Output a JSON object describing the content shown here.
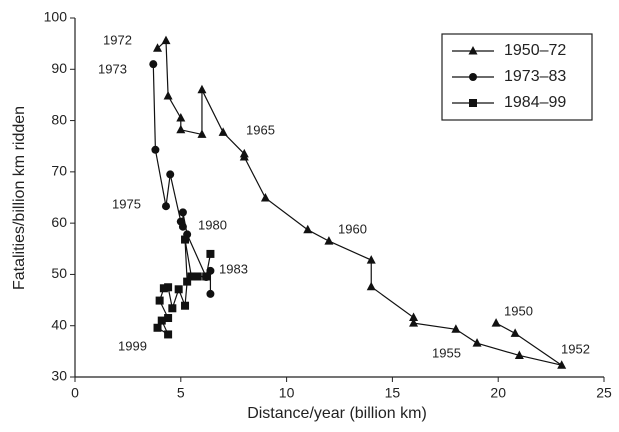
{
  "chart_data": {
    "type": "line",
    "x_label": "Distance/year (billion km)",
    "y_label": "Fatalities/billion km ridden",
    "xlim": [
      0,
      25
    ],
    "xticks": [
      0,
      5,
      10,
      15,
      20,
      25
    ],
    "ylim": [
      30,
      100
    ],
    "yticks": [
      30,
      40,
      50,
      60,
      70,
      80,
      90,
      100
    ],
    "grid": false,
    "legend": "upper right",
    "series": [
      {
        "name": "1950–72",
        "color": "#111111",
        "marker": "triangle",
        "x": [
          19.9,
          20.8,
          23.0,
          21.0,
          19.0,
          18.0,
          16.0,
          16.0,
          14.0,
          14.0,
          12.0,
          11.0,
          9.0,
          8.0,
          8.0,
          7.0,
          6.0,
          6.0,
          5.0,
          5.0,
          4.4,
          4.3,
          3.9
        ],
        "values": [
          40.5,
          38.5,
          32.3,
          34.2,
          36.6,
          39.3,
          40.5,
          41.6,
          47.6,
          52.8,
          56.5,
          58.7,
          64.9,
          72.9,
          73.5,
          77.7,
          86.0,
          77.3,
          78.2,
          80.5,
          84.8,
          95.6,
          94.1
        ]
      },
      {
        "name": "1973–83",
        "color": "#111111",
        "marker": "circle",
        "x": [
          3.7,
          3.8,
          4.3,
          4.5,
          5.0,
          5.1,
          5.1,
          5.3,
          6.2,
          6.4,
          6.4
        ],
        "values": [
          91.0,
          74.3,
          63.3,
          69.5,
          60.3,
          59.3,
          62.1,
          57.8,
          49.5,
          50.7,
          46.2
        ]
      },
      {
        "name": "1984–99",
        "color": "#111111",
        "marker": "square",
        "x": [
          6.4,
          6.2,
          5.8,
          5.5,
          5.2,
          5.3,
          5.2,
          4.9,
          4.6,
          4.4,
          4.2,
          4.0,
          4.4,
          4.1,
          4.4,
          3.9
        ],
        "values": [
          54.0,
          49.6,
          49.6,
          49.6,
          56.8,
          48.6,
          43.9,
          47.1,
          43.4,
          47.5,
          47.3,
          44.9,
          41.5,
          41.0,
          38.3,
          39.6
        ]
      }
    ],
    "annotations": [
      "1972",
      "1973",
      "1965",
      "1975",
      "1980",
      "1960",
      "1983",
      "1950",
      "1999",
      "1955",
      "1952"
    ]
  }
}
